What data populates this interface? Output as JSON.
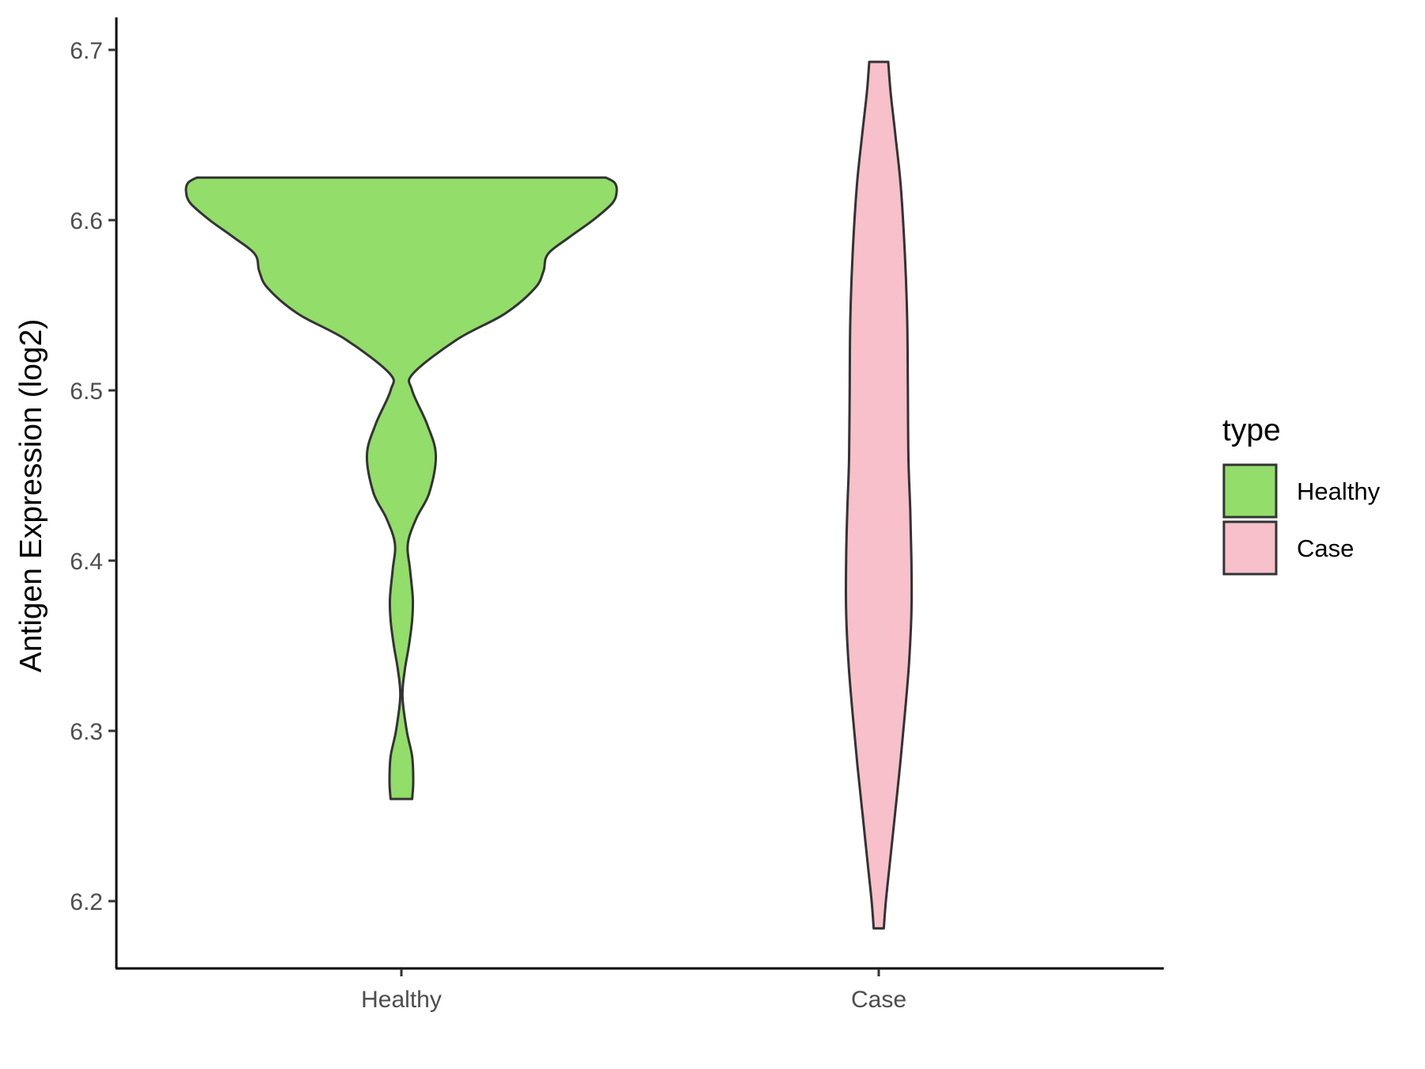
{
  "chart_data": {
    "type": "violin",
    "ylabel": "Antigen Expression (log2)",
    "xlabel": "",
    "categories": [
      "Healthy",
      "Case"
    ],
    "ylim": [
      6.16,
      6.718
    ],
    "yticks": [
      "6.2",
      "6.3",
      "6.4",
      "6.5",
      "6.6",
      "6.7"
    ],
    "grid": false,
    "legend": {
      "title": "type",
      "position": "right",
      "entries": [
        "Healthy",
        "Case"
      ]
    },
    "series": [
      {
        "category": "Healthy",
        "color": "#93dd6a",
        "range": [
          6.26,
          6.625
        ],
        "density_profile": [
          [
            6.26,
            0.05
          ],
          [
            6.27,
            0.055
          ],
          [
            6.285,
            0.05
          ],
          [
            6.3,
            0.025
          ],
          [
            6.32,
            0.005
          ],
          [
            6.335,
            0.015
          ],
          [
            6.35,
            0.035
          ],
          [
            6.365,
            0.05
          ],
          [
            6.378,
            0.053
          ],
          [
            6.395,
            0.04
          ],
          [
            6.41,
            0.03
          ],
          [
            6.425,
            0.07
          ],
          [
            6.44,
            0.13
          ],
          [
            6.462,
            0.16
          ],
          [
            6.48,
            0.12
          ],
          [
            6.5,
            0.05
          ],
          [
            6.51,
            0.055
          ],
          [
            6.53,
            0.26
          ],
          [
            6.545,
            0.48
          ],
          [
            6.56,
            0.62
          ],
          [
            6.57,
            0.66
          ],
          [
            6.58,
            0.68
          ],
          [
            6.59,
            0.78
          ],
          [
            6.6,
            0.89
          ],
          [
            6.61,
            0.98
          ],
          [
            6.617,
            1.0
          ],
          [
            6.622,
            0.99
          ],
          [
            6.625,
            0.95
          ]
        ]
      },
      {
        "category": "Case",
        "color": "#f7c0cb",
        "range": [
          6.184,
          6.693
        ],
        "density_profile": [
          [
            6.184,
            0.085
          ],
          [
            6.2,
            0.12
          ],
          [
            6.22,
            0.18
          ],
          [
            6.25,
            0.27
          ],
          [
            6.28,
            0.36
          ],
          [
            6.31,
            0.44
          ],
          [
            6.34,
            0.51
          ],
          [
            6.37,
            0.55
          ],
          [
            6.4,
            0.55
          ],
          [
            6.43,
            0.53
          ],
          [
            6.46,
            0.5
          ],
          [
            6.5,
            0.49
          ],
          [
            6.54,
            0.48
          ],
          [
            6.58,
            0.44
          ],
          [
            6.62,
            0.37
          ],
          [
            6.65,
            0.28
          ],
          [
            6.675,
            0.2
          ],
          [
            6.693,
            0.16
          ]
        ]
      }
    ]
  }
}
